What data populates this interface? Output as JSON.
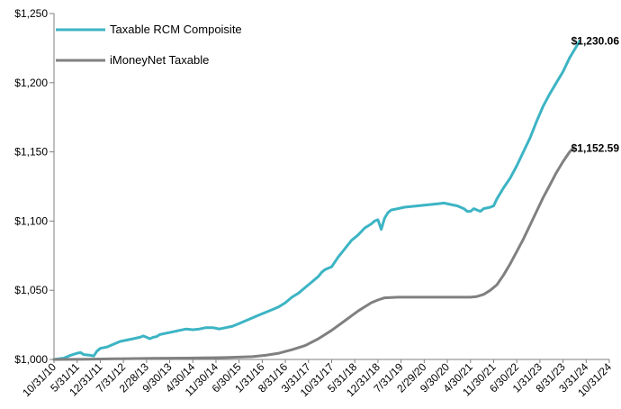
{
  "chart_data": {
    "type": "line",
    "title": "",
    "xlabel": "",
    "ylabel": "",
    "ylim": [
      1000,
      1250
    ],
    "y_ticks": [
      1000,
      1050,
      1100,
      1150,
      1200,
      1250
    ],
    "y_tick_labels": [
      "$1,000",
      "$1,050",
      "$1,100",
      "$1,150",
      "$1,200",
      "$1,250"
    ],
    "x_ticks": [
      "10/31/10",
      "5/31/11",
      "12/31/11",
      "7/31/12",
      "2/28/13",
      "9/30/13",
      "4/30/14",
      "11/30/14",
      "6/30/15",
      "1/31/16",
      "8/31/16",
      "3/31/17",
      "10/31/17",
      "5/31/18",
      "12/31/18",
      "7/31/19",
      "2/29/20",
      "9/30/20",
      "4/30/21",
      "11/30/21",
      "6/30/22",
      "1/31/23",
      "8/31/23",
      "3/31/24",
      "10/31/24"
    ],
    "x_range_months": [
      0,
      168
    ],
    "grid": false,
    "legend": "top-left",
    "series": [
      {
        "name": "Taxable RCM Compoisite",
        "color": "#3CB4C4",
        "end_label": "$1,230.06",
        "points": [
          [
            0,
            1000
          ],
          [
            3,
            1001
          ],
          [
            5,
            1003
          ],
          [
            7,
            1004.5
          ],
          [
            8,
            1005
          ],
          [
            9,
            1003.5
          ],
          [
            11,
            1003
          ],
          [
            12,
            1002.5
          ],
          [
            13,
            1006
          ],
          [
            14,
            1008
          ],
          [
            16,
            1009
          ],
          [
            18,
            1011
          ],
          [
            20,
            1013
          ],
          [
            24,
            1015
          ],
          [
            26,
            1016
          ],
          [
            27,
            1017
          ],
          [
            28,
            1016
          ],
          [
            29,
            1015
          ],
          [
            30,
            1016
          ],
          [
            31,
            1016.5
          ],
          [
            32,
            1018
          ],
          [
            34,
            1019
          ],
          [
            36,
            1020
          ],
          [
            38,
            1021
          ],
          [
            40,
            1022
          ],
          [
            42,
            1021.5
          ],
          [
            44,
            1022
          ],
          [
            46,
            1023
          ],
          [
            48,
            1023
          ],
          [
            49,
            1022.5
          ],
          [
            50,
            1022
          ],
          [
            52,
            1023
          ],
          [
            54,
            1024
          ],
          [
            56,
            1026
          ],
          [
            58,
            1028
          ],
          [
            60,
            1030
          ],
          [
            62,
            1032
          ],
          [
            64,
            1034
          ],
          [
            66,
            1036
          ],
          [
            68,
            1038
          ],
          [
            70,
            1041
          ],
          [
            72,
            1045
          ],
          [
            74,
            1048
          ],
          [
            76,
            1052
          ],
          [
            78,
            1056
          ],
          [
            80,
            1060
          ],
          [
            81,
            1063
          ],
          [
            82,
            1065
          ],
          [
            84,
            1067
          ],
          [
            86,
            1074
          ],
          [
            88,
            1080
          ],
          [
            90,
            1086
          ],
          [
            92,
            1090
          ],
          [
            94,
            1095
          ],
          [
            96,
            1098
          ],
          [
            97,
            1100
          ],
          [
            98,
            1101
          ],
          [
            99,
            1094
          ],
          [
            100,
            1102
          ],
          [
            101,
            1106
          ],
          [
            102,
            1108
          ],
          [
            104,
            1109
          ],
          [
            106,
            1110
          ],
          [
            108,
            1110.5
          ],
          [
            110,
            1111
          ],
          [
            112,
            1111.5
          ],
          [
            114,
            1112
          ],
          [
            116,
            1112.5
          ],
          [
            118,
            1113
          ],
          [
            120,
            1112
          ],
          [
            122,
            1111
          ],
          [
            124,
            1109
          ],
          [
            125,
            1107
          ],
          [
            126,
            1107
          ],
          [
            127,
            1109
          ],
          [
            128,
            1108
          ],
          [
            129,
            1107
          ],
          [
            130,
            1109
          ],
          [
            132,
            1110
          ],
          [
            133,
            1111
          ],
          [
            134,
            1116
          ],
          [
            136,
            1124
          ],
          [
            138,
            1131
          ],
          [
            140,
            1140
          ],
          [
            142,
            1150
          ],
          [
            144,
            1160
          ],
          [
            146,
            1172
          ],
          [
            148,
            1183
          ],
          [
            150,
            1192
          ],
          [
            152,
            1200
          ],
          [
            154,
            1208
          ],
          [
            156,
            1218
          ],
          [
            158,
            1226
          ],
          [
            159,
            1230.06
          ]
        ]
      },
      {
        "name": "iMoneyNet Taxable",
        "color": "#808080",
        "end_label": "$1,152.59",
        "points": [
          [
            0,
            1000
          ],
          [
            10,
            1000.2
          ],
          [
            20,
            1000.5
          ],
          [
            30,
            1000.8
          ],
          [
            40,
            1001
          ],
          [
            50,
            1001.3
          ],
          [
            55,
            1001.6
          ],
          [
            60,
            1002
          ],
          [
            64,
            1003
          ],
          [
            68,
            1004.5
          ],
          [
            72,
            1007
          ],
          [
            76,
            1010
          ],
          [
            80,
            1015
          ],
          [
            84,
            1021
          ],
          [
            88,
            1028
          ],
          [
            92,
            1035
          ],
          [
            96,
            1041
          ],
          [
            98,
            1043
          ],
          [
            100,
            1044.5
          ],
          [
            104,
            1045
          ],
          [
            110,
            1045
          ],
          [
            116,
            1045
          ],
          [
            122,
            1045
          ],
          [
            126,
            1045
          ],
          [
            128,
            1045.5
          ],
          [
            130,
            1047
          ],
          [
            132,
            1050
          ],
          [
            134,
            1054
          ],
          [
            136,
            1061
          ],
          [
            138,
            1069
          ],
          [
            140,
            1078
          ],
          [
            142,
            1087
          ],
          [
            144,
            1097
          ],
          [
            146,
            1107
          ],
          [
            148,
            1117
          ],
          [
            150,
            1126
          ],
          [
            152,
            1135
          ],
          [
            154,
            1143
          ],
          [
            156,
            1150
          ],
          [
            157,
            1152.59
          ]
        ]
      }
    ]
  }
}
